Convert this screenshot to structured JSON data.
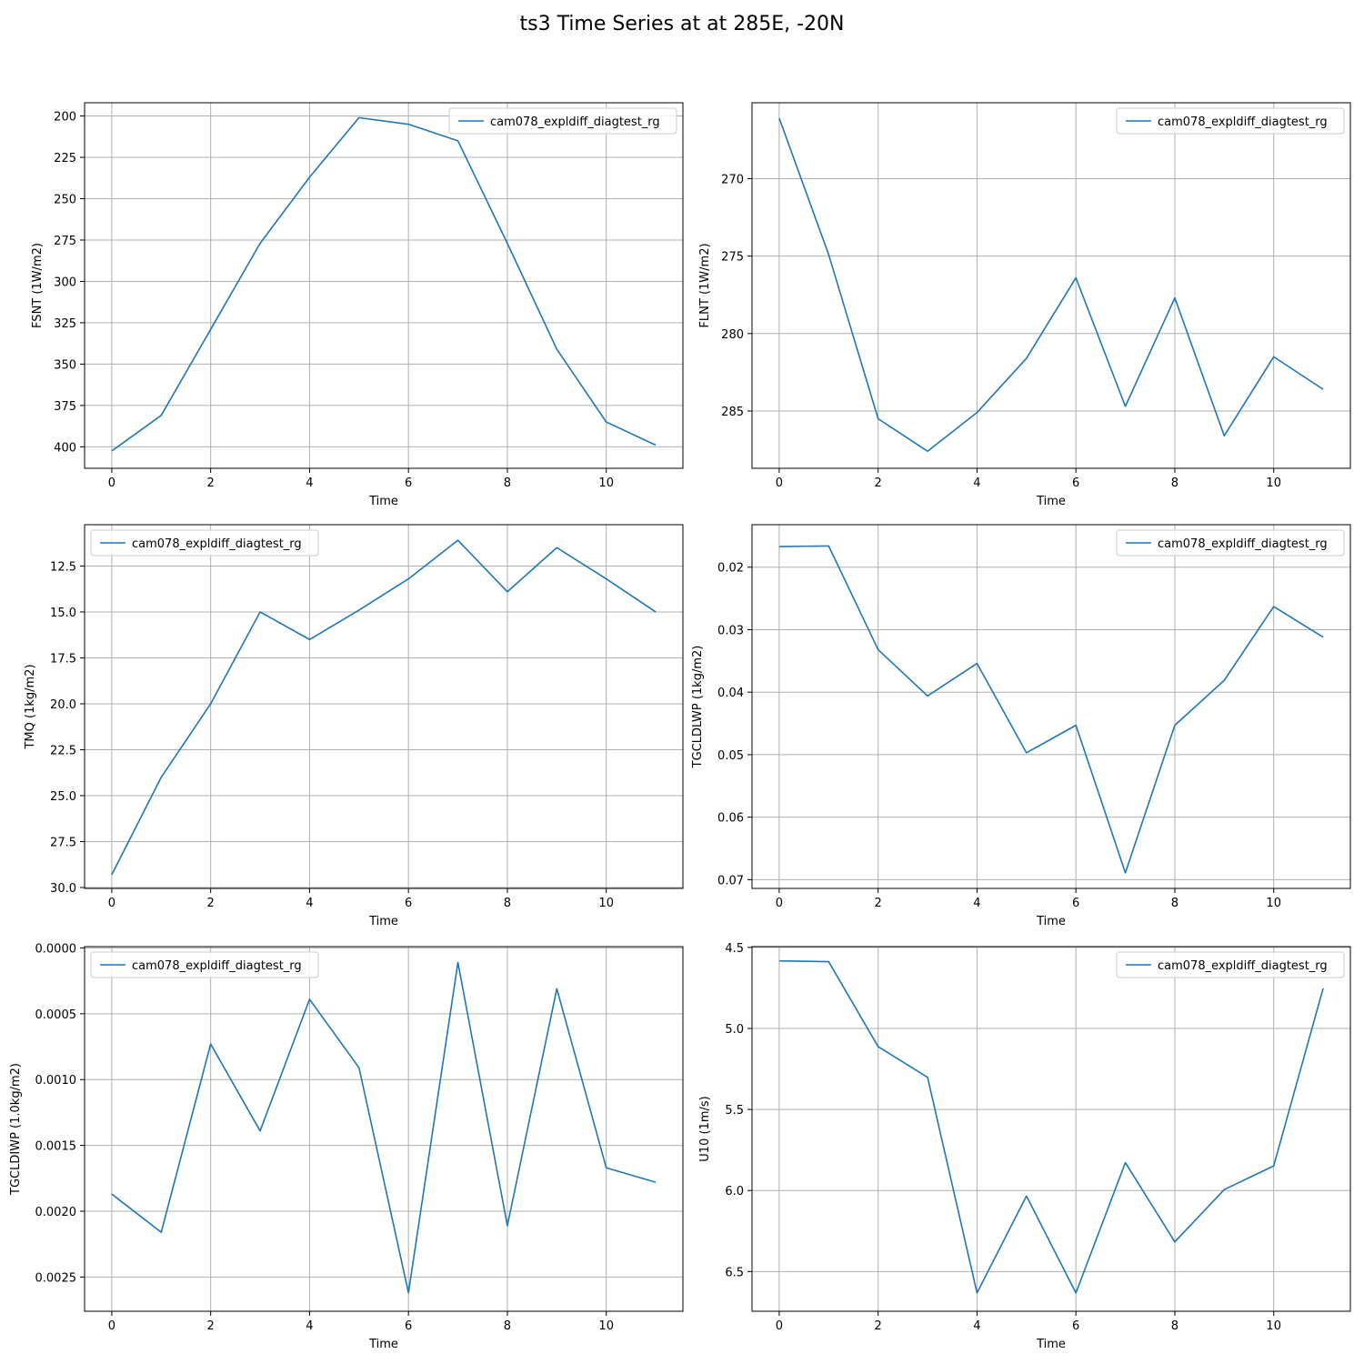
{
  "figure": {
    "title": "ts3 Time Series at at 285E, -20N"
  },
  "colors": {
    "series": "#1f77b4",
    "grid": "#b0b0b0",
    "axis": "#000000"
  },
  "chart_data": [
    {
      "type": "line",
      "title": "",
      "xlabel": "Time",
      "ylabel": "FSNT (1W/m2)",
      "x": [
        0,
        1,
        2,
        3,
        4,
        5,
        6,
        7,
        8,
        9,
        10,
        11
      ],
      "xlim": [
        -0.55,
        11.55
      ],
      "ylim": [
        413,
        192
      ],
      "y_inverted": true,
      "xticks": [
        0,
        2,
        4,
        6,
        8,
        10
      ],
      "xtick_labels": [
        "0",
        "2",
        "4",
        "6",
        "8",
        "10"
      ],
      "yticks": [
        200,
        225,
        250,
        275,
        300,
        325,
        350,
        375,
        400
      ],
      "ytick_labels": [
        "200",
        "225",
        "250",
        "275",
        "300",
        "325",
        "350",
        "375",
        "400"
      ],
      "grid": true,
      "legend_position": "top-right",
      "series": [
        {
          "name": "cam078_expldiff_diagtest_rg",
          "values": [
            402.5,
            381,
            329,
            277,
            237,
            201,
            205,
            215,
            277,
            341,
            385,
            399
          ]
        }
      ]
    },
    {
      "type": "line",
      "title": "",
      "xlabel": "Time",
      "ylabel": "FLNT (1W/m2)",
      "x": [
        0,
        1,
        2,
        3,
        4,
        5,
        6,
        7,
        8,
        9,
        10,
        11
      ],
      "xlim": [
        -0.55,
        11.55
      ],
      "ylim": [
        288.7,
        265.1
      ],
      "y_inverted": true,
      "xticks": [
        0,
        2,
        4,
        6,
        8,
        10
      ],
      "xtick_labels": [
        "0",
        "2",
        "4",
        "6",
        "8",
        "10"
      ],
      "yticks": [
        270,
        275,
        280,
        285
      ],
      "ytick_labels": [
        "270",
        "275",
        "280",
        "285"
      ],
      "grid": true,
      "legend_position": "top-right",
      "series": [
        {
          "name": "cam078_expldiff_diagtest_rg",
          "values": [
            266.1,
            274.9,
            285.5,
            287.6,
            285.1,
            281.6,
            276.4,
            284.7,
            277.7,
            286.6,
            281.5,
            283.6
          ]
        }
      ]
    },
    {
      "type": "line",
      "title": "",
      "xlabel": "Time",
      "ylabel": "TMQ (1kg/m2)",
      "x": [
        0,
        1,
        2,
        3,
        4,
        5,
        6,
        7,
        8,
        9,
        10,
        11
      ],
      "xlim": [
        -0.55,
        11.55
      ],
      "ylim": [
        30.05,
        10.25
      ],
      "y_inverted": true,
      "xticks": [
        0,
        2,
        4,
        6,
        8,
        10
      ],
      "xtick_labels": [
        "0",
        "2",
        "4",
        "6",
        "8",
        "10"
      ],
      "yticks": [
        12.5,
        15.0,
        17.5,
        20.0,
        22.5,
        25.0,
        27.5,
        30.0
      ],
      "ytick_labels": [
        "12.5",
        "15.0",
        "17.5",
        "20.0",
        "22.5",
        "25.0",
        "27.5",
        "30.0"
      ],
      "grid": true,
      "legend_position": "top-left",
      "series": [
        {
          "name": "cam078_expldiff_diagtest_rg",
          "values": [
            29.3,
            24.0,
            20.0,
            15.0,
            16.5,
            14.9,
            13.2,
            11.1,
            13.9,
            11.5,
            13.2,
            15.0
          ]
        }
      ]
    },
    {
      "type": "line",
      "title": "",
      "xlabel": "Time",
      "ylabel": "TGCLDLWP (1kg/m2)",
      "x": [
        0,
        1,
        2,
        3,
        4,
        5,
        6,
        7,
        8,
        9,
        10,
        11
      ],
      "xlim": [
        -0.55,
        11.55
      ],
      "ylim": [
        0.0714,
        0.0132
      ],
      "y_inverted": true,
      "xticks": [
        0,
        2,
        4,
        6,
        8,
        10
      ],
      "xtick_labels": [
        "0",
        "2",
        "4",
        "6",
        "8",
        "10"
      ],
      "yticks": [
        0.02,
        0.03,
        0.04,
        0.05,
        0.06,
        0.07
      ],
      "ytick_labels": [
        "0.02",
        "0.03",
        "0.04",
        "0.05",
        "0.06",
        "0.07"
      ],
      "grid": true,
      "legend_position": "top-right",
      "series": [
        {
          "name": "cam078_expldiff_diagtest_rg",
          "values": [
            0.0167,
            0.0166,
            0.0332,
            0.0406,
            0.0354,
            0.0497,
            0.0453,
            0.0689,
            0.0453,
            0.0381,
            0.0263,
            0.0312
          ]
        }
      ]
    },
    {
      "type": "line",
      "title": "",
      "xlabel": "Time",
      "ylabel": "TGCLDIWP (1.0kg/m2)",
      "x": [
        0,
        1,
        2,
        3,
        4,
        5,
        6,
        7,
        8,
        9,
        10,
        11
      ],
      "xlim": [
        -0.55,
        11.55
      ],
      "ylim": [
        0.00276,
        -1e-05
      ],
      "y_inverted": true,
      "xticks": [
        0,
        2,
        4,
        6,
        8,
        10
      ],
      "xtick_labels": [
        "0",
        "2",
        "4",
        "6",
        "8",
        "10"
      ],
      "yticks": [
        0.0,
        0.0005,
        0.001,
        0.0015,
        0.002,
        0.0025
      ],
      "ytick_labels": [
        "0.0000",
        "0.0005",
        "0.0010",
        "0.0015",
        "0.0020",
        "0.0025"
      ],
      "grid": true,
      "legend_position": "top-left",
      "series": [
        {
          "name": "cam078_expldiff_diagtest_rg",
          "values": [
            0.00187,
            0.00216,
            0.00073,
            0.00139,
            0.00039,
            0.00091,
            0.00262,
            0.00011,
            0.00211,
            0.00031,
            0.00167,
            0.00178
          ]
        }
      ]
    },
    {
      "type": "line",
      "title": "",
      "xlabel": "Time",
      "ylabel": "U10 (1m/s)",
      "x": [
        0,
        1,
        2,
        3,
        4,
        5,
        6,
        7,
        8,
        9,
        10,
        11
      ],
      "xlim": [
        -0.55,
        11.55
      ],
      "ylim": [
        6.745,
        4.495
      ],
      "y_inverted": true,
      "xticks": [
        0,
        2,
        4,
        6,
        8,
        10
      ],
      "xtick_labels": [
        "0",
        "2",
        "4",
        "6",
        "8",
        "10"
      ],
      "yticks": [
        4.5,
        5.0,
        5.5,
        6.0,
        6.5
      ],
      "ytick_labels": [
        "4.5",
        "5.0",
        "5.5",
        "6.0",
        "6.5"
      ],
      "grid": true,
      "legend_position": "top-right",
      "series": [
        {
          "name": "cam078_expldiff_diagtest_rg",
          "values": [
            4.583,
            4.588,
            5.112,
            5.301,
            6.632,
            6.034,
            6.632,
            5.828,
            6.317,
            5.994,
            5.848,
            4.752
          ]
        }
      ]
    }
  ]
}
